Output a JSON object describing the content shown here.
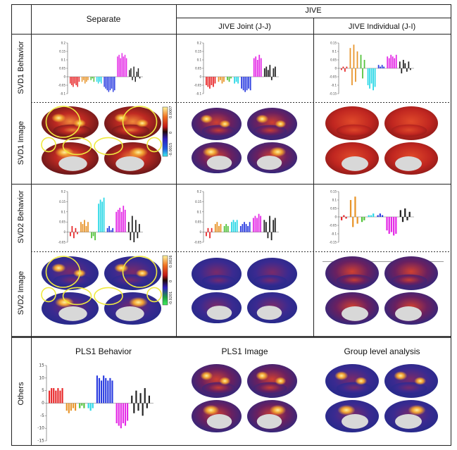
{
  "headers": {
    "separate": "Separate",
    "jive": "JIVE",
    "jive_joint": "JIVE Joint (J-J)",
    "jive_individual": "JIVE Individual (J-I)",
    "pls1_behavior": "PLS1 Behavior",
    "pls1_image": "PLS1 Image",
    "group_level": "Group level analysis"
  },
  "row_labels": {
    "svd1_behavior": "SVD1 Behavior",
    "svd1_image": "SVD1 Image",
    "svd2_behavior": "SVD2 Behavior",
    "svd2_image": "SVD2 Image",
    "others": "Others"
  },
  "colorbars": {
    "svd1": {
      "max": "0.0007",
      "mid": "0",
      "min": "-0.0015"
    },
    "svd2": {
      "max": "0.0026",
      "mid": "0",
      "min": "-0.0201"
    }
  },
  "colors": {
    "red": "#e8282a",
    "orange": "#e8952a",
    "green": "#52c23a",
    "cyan": "#2ad8e6",
    "blue": "#2a3ce0",
    "magenta": "#e42ae6",
    "black": "#222222"
  },
  "chart_data": [
    {
      "id": "svd1-separate",
      "type": "bar",
      "ylim": [
        -0.1,
        0.2
      ],
      "yticks": [
        "0.2",
        "0.15",
        "0.1",
        "0.05",
        "0",
        "-0.05",
        "-0.1"
      ],
      "groups": [
        {
          "color": "red",
          "values": [
            -0.04,
            -0.05,
            -0.06,
            -0.04,
            -0.05,
            -0.06,
            -0.03
          ]
        },
        {
          "color": "orange",
          "values": [
            -0.03,
            -0.02,
            -0.04,
            -0.03,
            -0.02
          ]
        },
        {
          "color": "green",
          "values": [
            -0.02,
            -0.01,
            -0.03
          ]
        },
        {
          "color": "cyan",
          "values": [
            -0.03,
            -0.04,
            -0.03,
            -0.04
          ]
        },
        {
          "color": "blue",
          "values": [
            -0.06,
            -0.07,
            -0.08,
            -0.09,
            -0.08,
            -0.07,
            -0.09,
            -0.08
          ]
        },
        {
          "color": "magenta",
          "values": [
            0.12,
            0.13,
            0.11,
            0.14,
            0.12,
            0.13,
            0.11
          ]
        },
        {
          "color": "black",
          "values": [
            0.04,
            0.05,
            -0.02,
            0.06,
            -0.03,
            0.03,
            0.05,
            -0.01
          ]
        }
      ]
    },
    {
      "id": "svd1-joint",
      "type": "bar",
      "ylim": [
        -0.1,
        0.2
      ],
      "yticks": [
        "0.2",
        "0.15",
        "0.1",
        "0.05",
        "0",
        "-0.05",
        "-0.1"
      ],
      "groups": [
        {
          "color": "red",
          "values": [
            -0.05,
            -0.06,
            -0.07,
            -0.05,
            -0.06,
            -0.04
          ]
        },
        {
          "color": "orange",
          "values": [
            -0.03,
            -0.02,
            -0.04,
            -0.03
          ]
        },
        {
          "color": "green",
          "values": [
            -0.02,
            -0.03,
            -0.01
          ]
        },
        {
          "color": "cyan",
          "values": [
            -0.04,
            -0.03,
            -0.04
          ]
        },
        {
          "color": "blue",
          "values": [
            -0.07,
            -0.08,
            -0.09,
            -0.08,
            -0.07,
            -0.08
          ]
        },
        {
          "color": "magenta",
          "values": [
            0.11,
            0.12,
            0.1,
            0.13,
            0.11
          ]
        },
        {
          "color": "black",
          "values": [
            0.05,
            0.06,
            0.04,
            0.07,
            -0.02,
            0.05,
            0.06
          ]
        }
      ]
    },
    {
      "id": "svd1-individual",
      "type": "bar",
      "ylim": [
        -0.15,
        0.15
      ],
      "yticks": [
        "0.15",
        "0.1",
        "0.05",
        "0",
        "-0.05",
        "-0.1",
        "-0.15"
      ],
      "groups": [
        {
          "color": "red",
          "values": [
            -0.01,
            0.01,
            -0.02,
            0.01
          ]
        },
        {
          "color": "orange",
          "values": [
            0.12,
            -0.1,
            0.14,
            -0.08,
            0.1
          ]
        },
        {
          "color": "green",
          "values": [
            0.08,
            -0.06,
            0.05
          ]
        },
        {
          "color": "cyan",
          "values": [
            -0.1,
            -0.12,
            -0.09,
            -0.13,
            -0.11
          ]
        },
        {
          "color": "blue",
          "values": [
            0.02,
            0.01,
            0.02,
            0.01
          ]
        },
        {
          "color": "magenta",
          "values": [
            0.07,
            0.06,
            0.08,
            0.07,
            0.06,
            0.08
          ]
        },
        {
          "color": "black",
          "values": [
            0.04,
            -0.03,
            0.05,
            0.03,
            -0.02,
            0.04,
            -0.01
          ]
        }
      ]
    },
    {
      "id": "svd2-separate",
      "type": "bar",
      "ylim": [
        -0.05,
        0.2
      ],
      "yticks": [
        "0.2",
        "0.15",
        "0.1",
        "0.05",
        "0",
        "-0.05"
      ],
      "groups": [
        {
          "color": "red",
          "values": [
            -0.02,
            0.03,
            -0.03,
            0.02,
            -0.01
          ]
        },
        {
          "color": "orange",
          "values": [
            0.05,
            0.04,
            0.06,
            0.03,
            0.05
          ]
        },
        {
          "color": "green",
          "values": [
            -0.03,
            -0.02,
            -0.04
          ]
        },
        {
          "color": "cyan",
          "values": [
            0.14,
            0.16,
            0.15,
            0.17
          ]
        },
        {
          "color": "blue",
          "values": [
            0.02,
            0.03,
            0.01,
            0.02
          ]
        },
        {
          "color": "magenta",
          "values": [
            0.1,
            0.11,
            0.12,
            0.1,
            0.13,
            0.11
          ]
        },
        {
          "color": "black",
          "values": [
            0.05,
            -0.04,
            0.08,
            -0.05,
            0.06,
            -0.03,
            0.04
          ]
        }
      ]
    },
    {
      "id": "svd2-joint",
      "type": "bar",
      "ylim": [
        -0.05,
        0.2
      ],
      "yticks": [
        "0.2",
        "0.15",
        "0.1",
        "0.05",
        "0",
        "-0.05"
      ],
      "groups": [
        {
          "color": "red",
          "values": [
            -0.02,
            0.02,
            -0.03,
            0.02
          ]
        },
        {
          "color": "orange",
          "values": [
            0.04,
            0.05,
            0.03,
            0.04
          ]
        },
        {
          "color": "green",
          "values": [
            0.03,
            0.04,
            0.03
          ]
        },
        {
          "color": "cyan",
          "values": [
            0.05,
            0.06,
            0.05,
            0.06
          ]
        },
        {
          "color": "blue",
          "values": [
            0.03,
            0.04,
            0.05,
            0.04,
            0.03,
            0.05
          ]
        },
        {
          "color": "magenta",
          "values": [
            0.07,
            0.08,
            0.07,
            0.09,
            0.08
          ]
        },
        {
          "color": "black",
          "values": [
            0.06,
            0.05,
            -0.03,
            0.08,
            -0.04,
            0.06,
            0.07
          ]
        }
      ]
    },
    {
      "id": "svd2-individual",
      "type": "bar",
      "ylim": [
        -0.15,
        0.15
      ],
      "yticks": [
        "0.15",
        "0.1",
        "0.05",
        "0",
        "-0.05",
        "-0.1",
        "-0.15"
      ],
      "groups": [
        {
          "color": "red",
          "values": [
            -0.02,
            0.01,
            -0.01
          ]
        },
        {
          "color": "orange",
          "values": [
            0.1,
            -0.06,
            0.12,
            -0.04
          ]
        },
        {
          "color": "green",
          "values": [
            -0.03,
            -0.02
          ]
        },
        {
          "color": "cyan",
          "values": [
            0.01,
            0.01,
            0.02
          ]
        },
        {
          "color": "blue",
          "values": [
            0.01,
            0.02,
            0.01
          ]
        },
        {
          "color": "magenta",
          "values": [
            -0.08,
            -0.1,
            -0.09,
            -0.11,
            -0.1
          ]
        },
        {
          "color": "black",
          "values": [
            0.04,
            -0.03,
            0.05,
            -0.02,
            0.03
          ]
        }
      ]
    },
    {
      "id": "pls1-behavior",
      "type": "bar",
      "ylim": [
        -15,
        15
      ],
      "yticks": [
        "15",
        "10",
        "5",
        "0",
        "-5",
        "-10",
        "-15"
      ],
      "groups": [
        {
          "color": "red",
          "values": [
            5,
            6,
            6,
            5,
            6,
            5,
            6
          ]
        },
        {
          "color": "orange",
          "values": [
            -3,
            -4,
            -3,
            -2,
            -3
          ]
        },
        {
          "color": "green",
          "values": [
            -2,
            -1,
            -2
          ]
        },
        {
          "color": "cyan",
          "values": [
            -2,
            -3,
            -2
          ]
        },
        {
          "color": "blue",
          "values": [
            11,
            10,
            9,
            11,
            10,
            9,
            10,
            9
          ]
        },
        {
          "color": "magenta",
          "values": [
            -8,
            -9,
            -10,
            -8,
            -9,
            -7
          ]
        },
        {
          "color": "black",
          "values": [
            3,
            -4,
            5,
            -3,
            4,
            -5,
            6,
            -2,
            3
          ]
        }
      ]
    }
  ]
}
